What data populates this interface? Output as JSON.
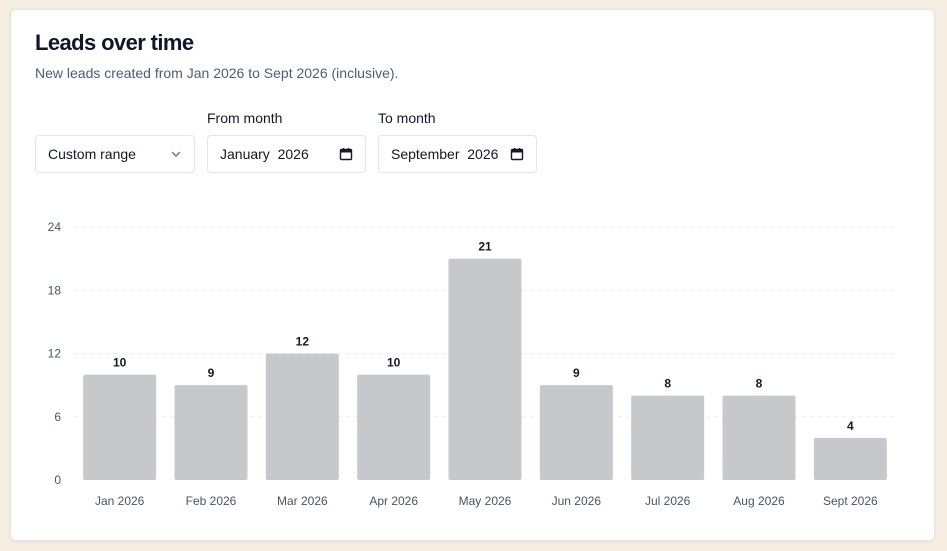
{
  "card": {
    "title": "Leads over time",
    "subtitle": "New leads created from Jan 2026 to Sept 2026 (inclusive)."
  },
  "controls": {
    "range_select": {
      "value": "Custom range",
      "icon": "chevron-down-icon"
    },
    "from": {
      "label": "From month",
      "value": "January  2026",
      "icon": "calendar-icon"
    },
    "to": {
      "label": "To month",
      "value": "September  2026",
      "icon": "calendar-icon"
    }
  },
  "colors": {
    "bar": "#c7c8cc",
    "grid": "#eceef1",
    "axis_text": "#475569"
  },
  "chart_data": {
    "type": "bar",
    "categories": [
      "Jan 2026",
      "Feb 2026",
      "Mar 2026",
      "Apr 2026",
      "May 2026",
      "Jun 2026",
      "Jul 2026",
      "Aug 2026",
      "Sept 2026"
    ],
    "values": [
      10,
      9,
      12,
      10,
      21,
      9,
      8,
      8,
      4
    ],
    "ylim": [
      0,
      24
    ],
    "yticks": [
      0,
      6,
      12,
      18,
      24
    ],
    "grid": true,
    "data_labels": true
  }
}
